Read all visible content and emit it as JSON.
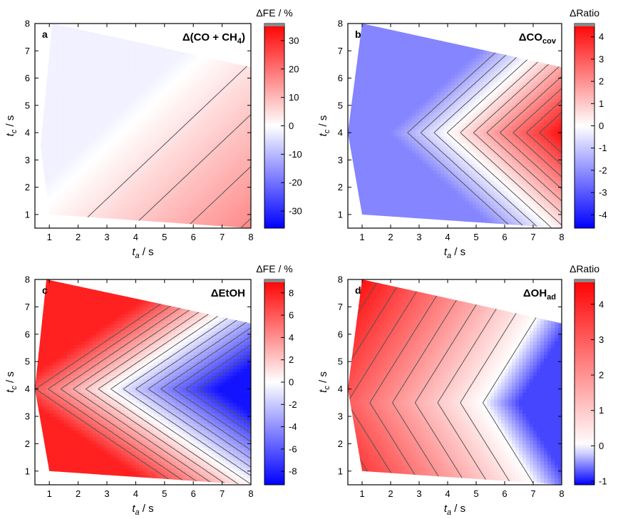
{
  "colors": {
    "pos": "#ff0000",
    "neg": "#0000ff",
    "zero": "#ffffff",
    "contour": "#555555",
    "overflow": "#888888"
  },
  "chart_data": [
    {
      "type": "heatmap",
      "panel_label": "a",
      "title": "Δ(CO + CH",
      "title_sub": "4",
      "title_end": ")",
      "xlabel": "t",
      "xlabel_sub": "a",
      "xlabel_unit": " / s",
      "ylabel": "t",
      "ylabel_sub": "c",
      "ylabel_unit": " / s",
      "xlim": [
        0.5,
        8
      ],
      "ylim": [
        0.5,
        8
      ],
      "xticks": [
        "1",
        "2",
        "3",
        "4",
        "5",
        "6",
        "7",
        "8"
      ],
      "yticks": [
        "1",
        "2",
        "3",
        "4",
        "5",
        "6",
        "7",
        "8"
      ],
      "colorbar": {
        "label": "ΔFE / %",
        "min": -36,
        "max": 36,
        "ticks": [
          "-30",
          "-20",
          "-10",
          "0",
          "10",
          "20",
          "30"
        ],
        "tick_values": [
          -30,
          -20,
          -10,
          0,
          10,
          20,
          30
        ]
      },
      "z_min": -2,
      "z_max": 36,
      "field": {
        "f0": 1,
        "fx": 2.1,
        "fy": -2.1,
        "c0": 0,
        "cx": 0,
        "cy": 0
      },
      "levels": [
        4,
        8,
        12,
        16,
        20,
        24,
        28,
        32
      ],
      "domain": [
        [
          1.1,
          8
        ],
        [
          8,
          6.4
        ],
        [
          8,
          0.5
        ],
        [
          1,
          1
        ],
        [
          0.7,
          3.5
        ]
      ]
    },
    {
      "type": "heatmap",
      "panel_label": "b",
      "title": "ΔCO",
      "title_sub": "cov",
      "title_end": "",
      "xlabel": "t",
      "xlabel_sub": "a",
      "xlabel_unit": " / s",
      "ylabel": "t",
      "ylabel_sub": "c",
      "ylabel_unit": " / s",
      "xlim": [
        0.5,
        8
      ],
      "ylim": [
        0.5,
        8
      ],
      "xticks": [
        "1",
        "2",
        "3",
        "4",
        "5",
        "6",
        "7",
        "8"
      ],
      "yticks": [
        "1",
        "2",
        "3",
        "4",
        "5",
        "6",
        "7",
        "8"
      ],
      "colorbar": {
        "label": "ΔRatio",
        "min": -4.6,
        "max": 4.6,
        "ticks": [
          "-4",
          "-3",
          "-2",
          "-1",
          "0",
          "1",
          "2",
          "3",
          "4"
        ],
        "tick_values": [
          -4,
          -3,
          -2,
          -1,
          0,
          1,
          2,
          3,
          4
        ]
      },
      "z_min": -2.2,
      "z_max": 4.4,
      "field": {
        "f0": -4.3,
        "fx": 1.08,
        "fy": 0,
        "c0": 4,
        "cx": 0,
        "cy": 1.05
      },
      "levels": [
        -1.5,
        -1,
        -0.5,
        0,
        0.5,
        1,
        1.5,
        2,
        2.5,
        3,
        3.5
      ],
      "domain": [
        [
          1,
          8
        ],
        [
          8,
          6.4
        ],
        [
          8,
          0.5
        ],
        [
          1,
          1
        ],
        [
          0.5,
          4
        ]
      ]
    },
    {
      "type": "heatmap",
      "panel_label": "c",
      "title": "ΔEtOH",
      "title_sub": "",
      "title_end": "",
      "xlabel": "t",
      "xlabel_sub": "a",
      "xlabel_unit": " / s",
      "ylabel": "t",
      "ylabel_sub": "c",
      "ylabel_unit": " / s",
      "xlim": [
        0.5,
        8
      ],
      "ylim": [
        0.5,
        8
      ],
      "xticks": [
        "1",
        "2",
        "3",
        "4",
        "5",
        "6",
        "7",
        "8"
      ],
      "yticks": [
        "1",
        "2",
        "3",
        "4",
        "5",
        "6",
        "7",
        "8"
      ],
      "colorbar": {
        "label": "ΔFE / %",
        "min": -9.2,
        "max": 9.2,
        "ticks": [
          "-8",
          "-6",
          "-4",
          "-2",
          "0",
          "2",
          "4",
          "6",
          "8"
        ],
        "tick_values": [
          -8,
          -6,
          -4,
          -2,
          0,
          2,
          4,
          6,
          8
        ]
      },
      "z_min": -8.5,
      "z_max": 8,
      "field": {
        "f0": 7.2,
        "fx": -2.3,
        "fy": 0,
        "c0": 4,
        "cx": 0,
        "cy": 1.4,
        "g": 0.8
      },
      "levels": [
        -7,
        -6,
        -5,
        -4,
        -3,
        -2,
        -1,
        0,
        1,
        2,
        3,
        4,
        5,
        6
      ],
      "domain": [
        [
          0.9,
          8
        ],
        [
          8,
          6.4
        ],
        [
          8,
          0.5
        ],
        [
          1,
          1
        ],
        [
          0.5,
          4
        ]
      ]
    },
    {
      "type": "heatmap",
      "panel_label": "d",
      "title": "ΔOH",
      "title_sub": "ad",
      "title_end": "",
      "xlabel": "t",
      "xlabel_sub": "a",
      "xlabel_unit": " / s",
      "ylabel": "t",
      "ylabel_sub": "c",
      "ylabel_unit": " / s",
      "xlim": [
        0.5,
        8
      ],
      "ylim": [
        0.5,
        8
      ],
      "xticks": [
        "1",
        "2",
        "3",
        "4",
        "5",
        "6",
        "7",
        "8"
      ],
      "yticks": [
        "1",
        "2",
        "3",
        "4",
        "5",
        "6",
        "7",
        "8"
      ],
      "colorbar": {
        "label": "ΔRatio",
        "min": -1.1,
        "max": 4.7,
        "ticks": [
          "-1",
          "0",
          "1",
          "2",
          "3",
          "4"
        ],
        "tick_values": [
          -1,
          0,
          1,
          2,
          3,
          4
        ]
      },
      "z_min": -0.8,
      "z_max": 4.6,
      "field": {
        "f0": 3.3,
        "fx": -0.63,
        "fy": 0,
        "c0": 3.5,
        "cx": 0,
        "cy": 0.6,
        "g": 0.15
      },
      "levels": [
        0,
        0.5,
        1,
        1.5,
        2,
        2.5,
        3,
        3.5,
        4
      ],
      "domain": [
        [
          1,
          8
        ],
        [
          8,
          6.4
        ],
        [
          8,
          0.5
        ],
        [
          1,
          1
        ],
        [
          0.5,
          4
        ]
      ]
    }
  ]
}
